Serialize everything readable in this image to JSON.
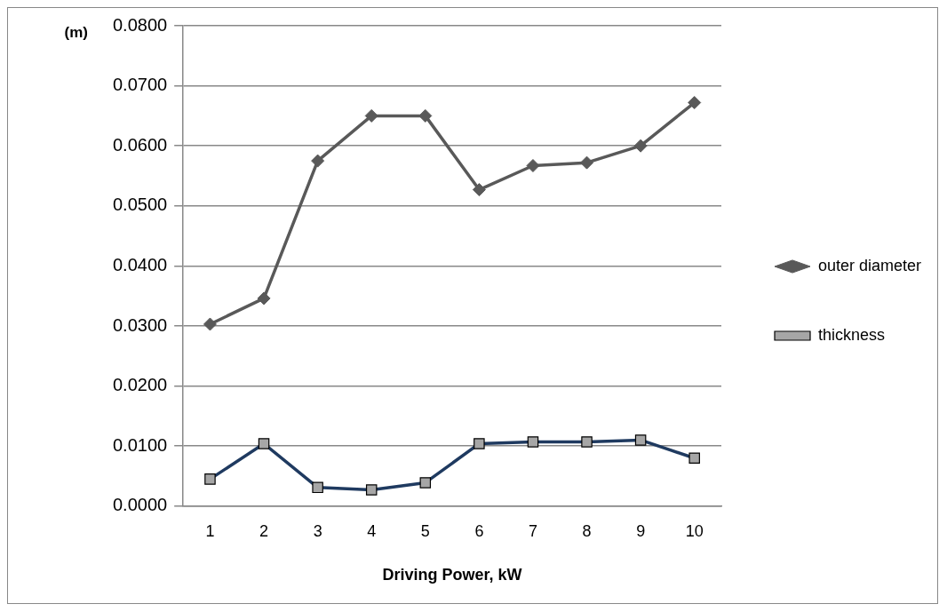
{
  "chart_data": {
    "type": "line",
    "xlabel": "Driving Power, kW",
    "ylabel": "(m)",
    "categories": [
      "1",
      "2",
      "3",
      "4",
      "5",
      "6",
      "7",
      "8",
      "9",
      "10"
    ],
    "series": [
      {
        "name": "outer diameter",
        "color": "#595959",
        "marker": "diamond",
        "values": [
          0.0303,
          0.0346,
          0.0575,
          0.065,
          0.065,
          0.0527,
          0.0567,
          0.0572,
          0.06,
          0.0672
        ]
      },
      {
        "name": "thickness",
        "color": "#1f3a60",
        "marker": "square",
        "values": [
          0.0045,
          0.0104,
          0.0031,
          0.0027,
          0.0039,
          0.0104,
          0.0107,
          0.0107,
          0.011,
          0.008
        ]
      }
    ],
    "ylim": [
      0,
      0.08
    ],
    "yticks": [
      {
        "value": 0,
        "label": "0.0000"
      },
      {
        "value": 0.01,
        "label": "0.0100"
      },
      {
        "value": 0.02,
        "label": "0.0200"
      },
      {
        "value": 0.03,
        "label": "0.0300"
      },
      {
        "value": 0.04,
        "label": "0.0400"
      },
      {
        "value": 0.05,
        "label": "0.0500"
      },
      {
        "value": 0.06,
        "label": "0.0600"
      },
      {
        "value": 0.07,
        "label": "0.0700"
      },
      {
        "value": 0.08,
        "label": "0.0800"
      }
    ],
    "grid": "y",
    "legend": "right",
    "line_style": "solid"
  }
}
